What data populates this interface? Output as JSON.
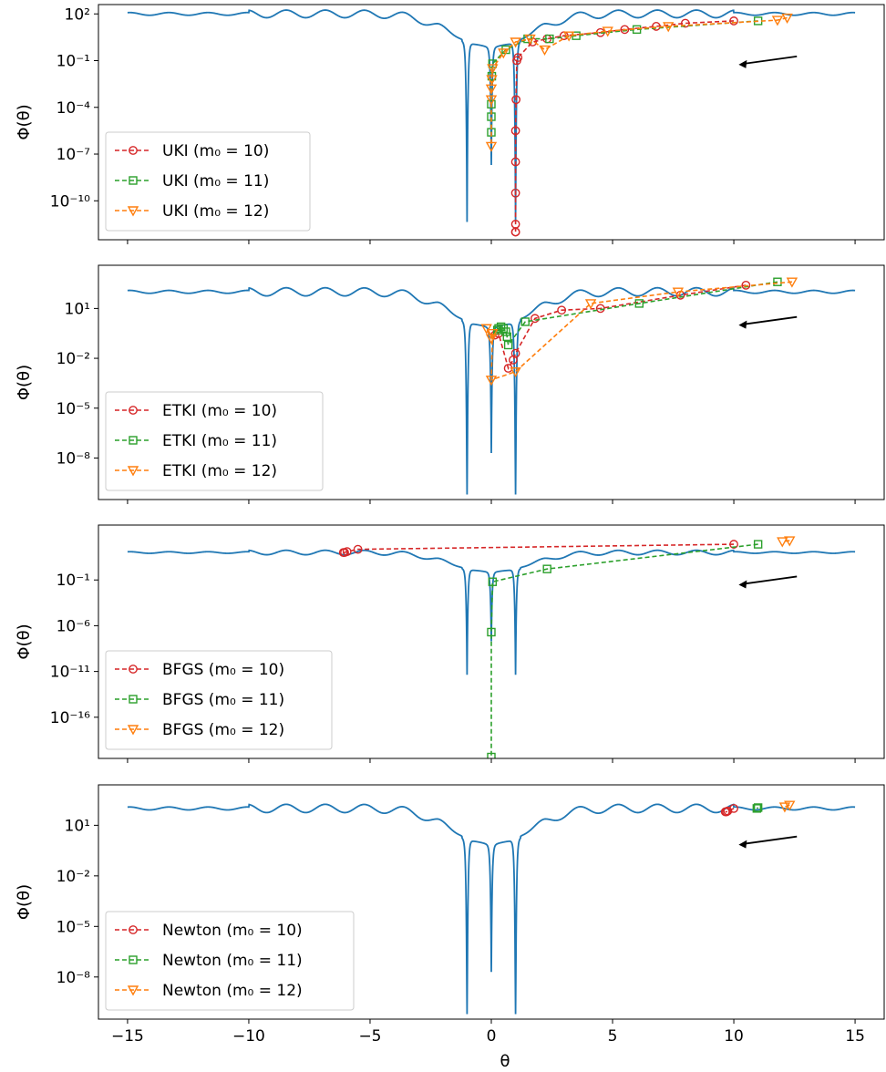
{
  "chart_data": [
    {
      "type": "line",
      "ylabel": "Φ(θ)",
      "xlabel": "",
      "xlim": [
        -16.2,
        16.2
      ],
      "y_log_range": [
        -12.5,
        2.6
      ],
      "yticks": [
        {
          "exp": 2,
          "label": "10²"
        },
        {
          "exp": -1,
          "label": "10⁻¹"
        },
        {
          "exp": -4,
          "label": "10⁻⁴"
        },
        {
          "exp": -7,
          "label": "10⁻⁷"
        },
        {
          "exp": -10,
          "label": "10⁻¹⁰"
        }
      ],
      "legend_position": "lower-left",
      "annotation": "arrow pointing left",
      "series": [
        {
          "name": "UKI (m₀ = 10)",
          "color": "#d62728",
          "marker": "circle",
          "x": [
            10,
            8,
            6.8,
            5.5,
            4.5,
            3,
            2.3,
            1.7,
            1.1,
            1.05,
            1.02,
            1.0,
            1.0,
            1.0,
            1.0,
            1.0,
            1.0
          ],
          "log_y": [
            1.55,
            1.4,
            1.2,
            1.0,
            0.8,
            0.6,
            0.4,
            0.2,
            -0.8,
            -1.0,
            -3.5,
            -5.5,
            -7.5,
            -9.5,
            -11.5,
            -12.0,
            -12.0
          ]
        },
        {
          "name": "UKI (m₀ = 11)",
          "color": "#2ca02c",
          "marker": "square",
          "x": [
            11,
            6,
            3.5,
            2.4,
            1.5,
            0.6,
            0.05,
            0.02,
            0.0,
            0.0,
            0.0
          ],
          "log_y": [
            1.55,
            1.0,
            0.6,
            0.4,
            0.4,
            -0.3,
            -1.2,
            -2.0,
            -3.8,
            -4.6,
            -5.6
          ],
          "labeled_points": 9
        },
        {
          "name": "UKI (m₀ = 12)",
          "color": "#ff7f0e",
          "marker": "triangle-down",
          "x": [
            12.2,
            11.8,
            7.3,
            4.8,
            3.2,
            2.2,
            1.6,
            1.0,
            0.5,
            0.05,
            0.02,
            0.0,
            0.0,
            0.0
          ],
          "log_y": [
            1.75,
            1.6,
            1.2,
            0.9,
            0.6,
            -0.3,
            0.4,
            0.2,
            -0.5,
            -1.5,
            -2.2,
            -2.8,
            -3.5,
            -6.5
          ]
        }
      ]
    },
    {
      "type": "line",
      "ylabel": "Φ(θ)",
      "xlabel": "",
      "xlim": [
        -16.2,
        16.2
      ],
      "y_log_range": [
        -10.5,
        3.6
      ],
      "yticks": [
        {
          "exp": 1,
          "label": "10¹"
        },
        {
          "exp": -2,
          "label": "10⁻²"
        },
        {
          "exp": -5,
          "label": "10⁻⁵"
        },
        {
          "exp": -8,
          "label": "10⁻⁸"
        }
      ],
      "legend_position": "lower-left",
      "annotation": "arrow pointing left",
      "series": [
        {
          "name": "ETKI (m₀ = 10)",
          "color": "#d62728",
          "marker": "circle",
          "x": [
            10.5,
            7.8,
            4.5,
            2.9,
            1.8,
            1.0,
            0.9,
            0.7,
            0.3,
            0.15
          ],
          "log_y": [
            2.4,
            1.8,
            1.0,
            0.9,
            0.4,
            -1.7,
            -2.1,
            -2.6,
            -0.5,
            -0.6
          ]
        },
        {
          "name": "ETKI (m₀ = 11)",
          "color": "#2ca02c",
          "marker": "square",
          "x": [
            11.8,
            6.1,
            1.4,
            0.7,
            0.65,
            0.6,
            0.5,
            0.4,
            0.3,
            0.25
          ],
          "log_y": [
            2.6,
            1.3,
            0.2,
            -1.2,
            -0.7,
            -0.4,
            -0.2,
            -0.1,
            -0.2,
            -0.3
          ]
        },
        {
          "name": "ETKI (m₀ = 12)",
          "color": "#ff7f0e",
          "marker": "triangle-down",
          "x": [
            12.4,
            7.7,
            4.1,
            1.0,
            0.0,
            0.05,
            0.0,
            -0.2
          ],
          "log_y": [
            2.6,
            2.0,
            1.3,
            -2.8,
            -3.3,
            -0.5,
            -0.8,
            -0.2
          ]
        }
      ]
    },
    {
      "type": "line",
      "ylabel": "Φ(θ)",
      "xlabel": "",
      "xlim": [
        -16.2,
        16.2
      ],
      "y_log_range": [
        -20.5,
        5.0
      ],
      "yticks": [
        {
          "exp": -1,
          "label": "10⁻¹"
        },
        {
          "exp": -6,
          "label": "10⁻⁶"
        },
        {
          "exp": -11,
          "label": "10⁻¹¹"
        },
        {
          "exp": -16,
          "label": "10⁻¹⁶"
        }
      ],
      "legend_position": "lower-left",
      "annotation": "arrow pointing left",
      "series": [
        {
          "name": "BFGS (m₀ = 10)",
          "color": "#d62728",
          "marker": "circle",
          "x": [
            10,
            -5.5,
            -5.95,
            -6.05,
            -6.1
          ],
          "log_y": [
            2.9,
            2.35,
            2.1,
            2.0,
            2.0
          ]
        },
        {
          "name": "BFGS (m₀ = 11)",
          "color": "#2ca02c",
          "marker": "square",
          "x": [
            11,
            2.3,
            0.05,
            0.0,
            0.0
          ],
          "log_y": [
            2.9,
            0.2,
            -1.2,
            -6.7,
            -21.0
          ]
        },
        {
          "name": "BFGS (m₀ = 12)",
          "color": "#ff7f0e",
          "marker": "triangle-down",
          "x": [
            12.3,
            12.0
          ],
          "log_y": [
            3.3,
            3.2
          ]
        }
      ]
    },
    {
      "type": "line",
      "ylabel": "Φ(θ)",
      "xlabel": "θ",
      "xlim": [
        -16.2,
        16.2
      ],
      "y_log_range": [
        -10.5,
        3.4
      ],
      "yticks": [
        {
          "exp": 1,
          "label": "10¹"
        },
        {
          "exp": -2,
          "label": "10⁻²"
        },
        {
          "exp": -5,
          "label": "10⁻⁵"
        },
        {
          "exp": -8,
          "label": "10⁻⁸"
        }
      ],
      "legend_position": "lower-left",
      "annotation": "arrow pointing left",
      "series": [
        {
          "name": "Newton (m₀ = 10)",
          "color": "#d62728",
          "marker": "circle",
          "x": [
            10,
            9.75,
            9.7,
            9.65
          ],
          "log_y": [
            2.0,
            1.85,
            1.8,
            1.8
          ]
        },
        {
          "name": "Newton (m₀ = 11)",
          "color": "#2ca02c",
          "marker": "square",
          "x": [
            11,
            10.95
          ],
          "log_y": [
            2.05,
            2.0
          ]
        },
        {
          "name": "Newton (m₀ = 12)",
          "color": "#ff7f0e",
          "marker": "triangle-down",
          "x": [
            12.3,
            12.1
          ],
          "log_y": [
            2.2,
            2.1
          ]
        }
      ]
    }
  ],
  "x_axis": {
    "ticks": [
      {
        "value": -15,
        "label": "−15"
      },
      {
        "value": -10,
        "label": "−10"
      },
      {
        "value": -5,
        "label": "−5"
      },
      {
        "value": 0,
        "label": "0"
      },
      {
        "value": 5,
        "label": "5"
      },
      {
        "value": 10,
        "label": "10"
      },
      {
        "value": 15,
        "label": "15"
      }
    ],
    "label": "θ"
  },
  "curve": {
    "color": "#1f77b4",
    "x_range": [
      -15,
      15
    ],
    "spikes": [
      -1,
      0,
      1
    ]
  },
  "arrow": {
    "color": "#000000",
    "from_x": 12.6,
    "to_x": 10.2
  }
}
